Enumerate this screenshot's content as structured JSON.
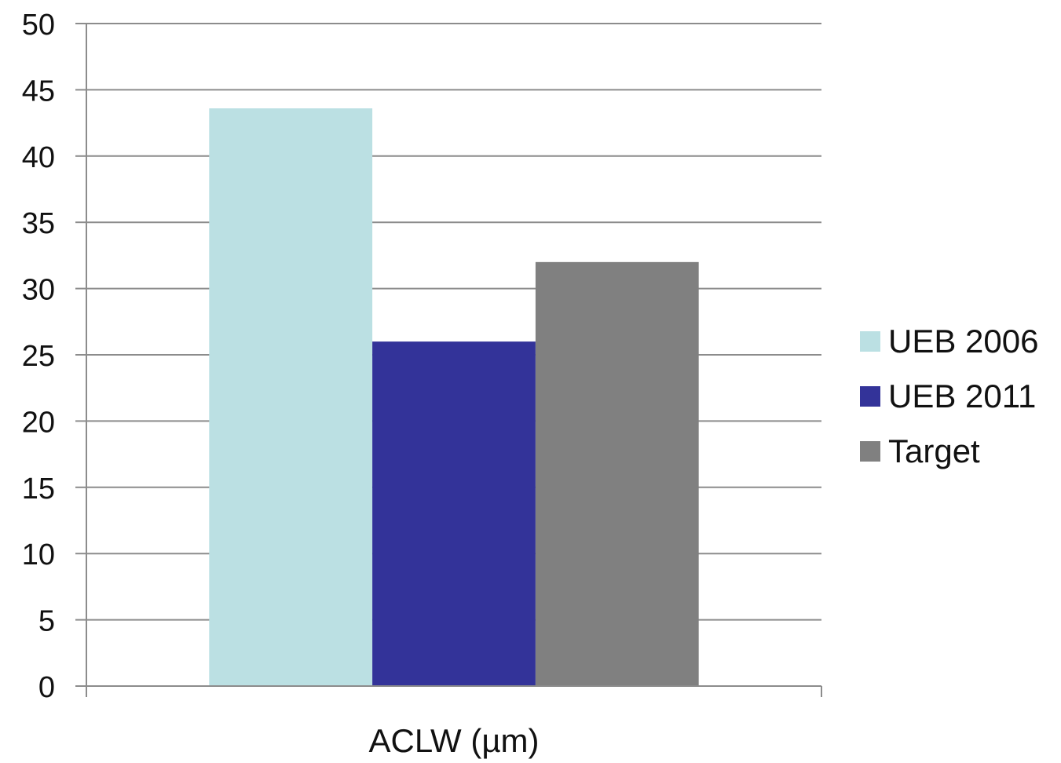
{
  "chart_data": {
    "type": "bar",
    "categories": [
      "ACLW (µm)"
    ],
    "series": [
      {
        "name": "UEB 2006",
        "values": [
          43.6
        ],
        "color": "#BBE0E3"
      },
      {
        "name": "UEB 2011",
        "values": [
          26.0
        ],
        "color": "#333399"
      },
      {
        "name": "Target",
        "values": [
          32.0
        ],
        "color": "#808080"
      }
    ],
    "title": "",
    "xlabel": "",
    "ylabel": "",
    "ylim": [
      0,
      50
    ],
    "yticks": [
      "0",
      "5",
      "10",
      "15",
      "20",
      "25",
      "30",
      "35",
      "40",
      "45",
      "50"
    ],
    "grid": true,
    "legend_position": "right"
  }
}
